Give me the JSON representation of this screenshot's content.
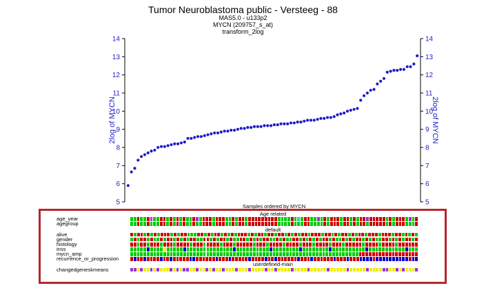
{
  "header": {
    "title": "Tumor Neuroblastoma public - Versteeg - 88",
    "subtitle_lines": [
      "MAS5.0 - u133p2",
      "MYCN (209757_s_at)",
      "transform_2log"
    ]
  },
  "chart_data": {
    "type": "scatter",
    "title": "Tumor Neuroblastoma public - Versteeg - 88",
    "xlabel": "Samples ordered by MYCN",
    "ylabel": "2log of MYCN",
    "ylabel_right": "2log of MYCN",
    "ylim": [
      5,
      14
    ],
    "yticks": [
      5,
      6,
      7,
      8,
      9,
      10,
      11,
      12,
      13,
      14
    ],
    "xlim": [
      0,
      89
    ],
    "grid": false,
    "point_color": "#1c1cc8",
    "x": [
      1,
      2,
      3,
      4,
      5,
      6,
      7,
      8,
      9,
      10,
      11,
      12,
      13,
      14,
      15,
      16,
      17,
      18,
      19,
      20,
      21,
      22,
      23,
      24,
      25,
      26,
      27,
      28,
      29,
      30,
      31,
      32,
      33,
      34,
      35,
      36,
      37,
      38,
      39,
      40,
      41,
      42,
      43,
      44,
      45,
      46,
      47,
      48,
      49,
      50,
      51,
      52,
      53,
      54,
      55,
      56,
      57,
      58,
      59,
      60,
      61,
      62,
      63,
      64,
      65,
      66,
      67,
      68,
      69,
      70,
      71,
      72,
      73,
      74,
      75,
      76,
      77,
      78,
      79,
      80,
      81,
      82,
      83,
      84,
      85,
      86,
      87,
      88
    ],
    "values": [
      5.9,
      6.65,
      6.85,
      7.3,
      7.5,
      7.6,
      7.7,
      7.8,
      7.85,
      8.0,
      8.05,
      8.05,
      8.1,
      8.15,
      8.2,
      8.2,
      8.25,
      8.3,
      8.5,
      8.5,
      8.55,
      8.6,
      8.6,
      8.65,
      8.7,
      8.75,
      8.8,
      8.8,
      8.85,
      8.9,
      8.9,
      8.95,
      8.95,
      9.0,
      9.05,
      9.05,
      9.1,
      9.1,
      9.15,
      9.15,
      9.15,
      9.2,
      9.2,
      9.2,
      9.25,
      9.25,
      9.3,
      9.3,
      9.3,
      9.35,
      9.35,
      9.4,
      9.4,
      9.45,
      9.5,
      9.5,
      9.5,
      9.55,
      9.6,
      9.6,
      9.65,
      9.65,
      9.7,
      9.8,
      9.85,
      9.9,
      10.0,
      10.05,
      10.1,
      10.15,
      10.6,
      10.85,
      11.0,
      11.15,
      11.2,
      11.5,
      11.65,
      11.8,
      12.15,
      12.2,
      12.25,
      12.25,
      12.3,
      12.3,
      12.45,
      12.45,
      12.6,
      13.05
    ]
  },
  "annotations": {
    "legend_colors": {
      "green": "#00cc00",
      "red": "#cc0000",
      "purple": "#9933cc",
      "magenta": "#cc33cc",
      "yellow": "#eeee00",
      "blue": "#0000cc",
      "cyan": "#33cccc",
      "lightgreen": "#66dd66"
    },
    "groups": [
      {
        "name": "Age related",
        "tracks": [
          {
            "label": "age_year",
            "cells": "GGRGGRMGGRRGRGRGRGGRPGRRRGRRRGGRGRRGRRRRRRRRRGGGGRGCGRRGGPGRGRRRGRRGRGRRPRRRRRGRGRRRGPGR"
          },
          {
            "label": "agegroup",
            "cells": "GGRGGRGGGRRGRGRGRGGRGGRRRGRRRGGRGRRGRRRRRRRRRGGGGRGGGRRGGGGRGRRRGRRGRGRRGRRRRRGRGRRRGGGR"
          }
        ]
      },
      {
        "name": "default",
        "tracks": [
          {
            "label": "alive",
            "cells": "RGRRGRGRGRRRGRGRRGGGRRGRGRRGRGRGRRRGRGRRGRRGRRGRGRGRRGRRRGRRGRGRRGRGRRGRRRGRRRGRRGRGRG"
          },
          {
            "label": "gender",
            "cells": "GRGRRGRGGRGRRGRGRGRRGGRRGRGRRGRGGRRGRGRGRRGGRGRGGRRGRGRGRGRRGRGGRGRGRRGRGRGGRRGRGRGRRGR"
          },
          {
            "label": "histology",
            "cells": "RRGRRGRRRGRRRGRRRRGRRRGRRRRGRRRGRRRRRGRRRGRRRRGRRRRGRRRGRRRRGRRRGRRRRRGRRRRGRRRRGRRRRRR"
          },
          {
            "label": "inss",
            "cells": "GGGGGBGGGGYGGGGGBGGGGGGGGGGGGGGBGGGGGGGGGGBGGGGGGGGBGGGGGGGGBGGGGGGGGGGBGGGGGGGGGGGBGGG"
          },
          {
            "label": "mycn_amp",
            "cells": "GGGGGGGGGGGGGGGGGGGGGGGGGGGGGGGGGGGGGGGGGGGGGGGGGGGGGGGGGGGGGGGGGGGGGRRRRRRRRRRRRRRRRRR"
          },
          {
            "label": "recurrence_or_progression",
            "cells": "RBRRBRRRRBRRBRRRRRBBRRRRRRBRRRBRRRRRBRRRRBRRBRRRRRRBRRRBRRRRRRBRRRBRRRBBBBRBBBBBBBBBBRBB"
          }
        ]
      },
      {
        "name": "userdefined-main",
        "tracks": [
          {
            "label": "changedgeneskmeans",
            "cells": "PPYPYYPYPYYYPYPYPPYYPYYPYPYYPYYYPYYYPYYYYPYYPYYYYPYYYYPYYYYYPYYYYYPYYYYYPYYYYPPYYPYPYYYP"
          }
        ]
      }
    ]
  }
}
